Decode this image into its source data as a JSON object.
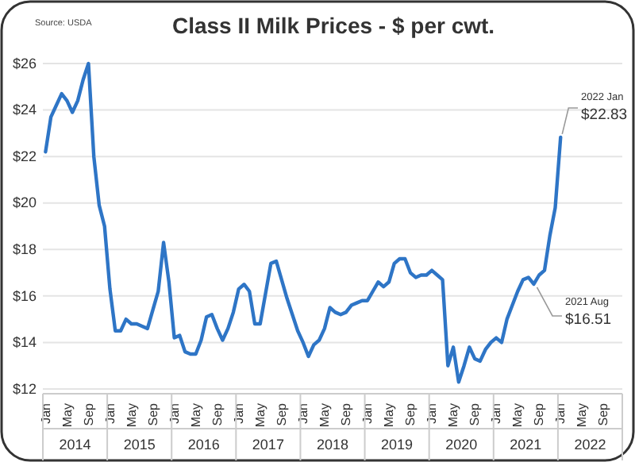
{
  "chart_data": {
    "type": "line",
    "title": "Class II Milk Prices - $ per cwt.",
    "categories": [
      "Jan",
      null,
      null,
      null,
      "May",
      null,
      null,
      null,
      "Sep",
      null,
      null,
      null,
      "Jan",
      null,
      null,
      null,
      "May",
      null,
      null,
      null,
      "Sep",
      null,
      null,
      null,
      "Jan",
      null,
      null,
      null,
      "May",
      null,
      null,
      null,
      "Sep",
      null,
      null,
      null,
      "Jan",
      null,
      null,
      null,
      "May",
      null,
      null,
      null,
      "Sep",
      null,
      null,
      null,
      "Jan",
      null,
      null,
      null,
      "May",
      null,
      null,
      null,
      "Sep",
      null,
      null,
      null,
      "Jan",
      null,
      null,
      null,
      "May",
      null,
      null,
      null,
      "Sep",
      null,
      null,
      null,
      "Jan",
      null,
      null,
      null,
      "May",
      null,
      null,
      null,
      "Sep",
      null,
      null,
      null,
      "Jan",
      null,
      null,
      null,
      "May",
      null,
      null,
      null,
      "Sep",
      null,
      null,
      null,
      "Jan",
      null,
      null,
      null,
      "May",
      null,
      null,
      null,
      "Sep",
      null,
      null,
      null
    ],
    "series": [
      {
        "color": "#2e75c6",
        "values": [
          22.2,
          23.7,
          24.2,
          24.7,
          24.4,
          23.9,
          24.4,
          25.3,
          26.0,
          22.0,
          19.9,
          19.0,
          16.3,
          14.5,
          14.5,
          15.0,
          14.8,
          14.8,
          14.7,
          14.6,
          15.4,
          16.2,
          18.3,
          16.6,
          14.2,
          14.3,
          13.6,
          13.5,
          13.5,
          14.1,
          15.1,
          15.2,
          14.6,
          14.1,
          14.6,
          15.3,
          16.3,
          16.5,
          16.2,
          14.8,
          14.8,
          16.1,
          17.4,
          17.5,
          16.7,
          15.9,
          15.2,
          14.5,
          14.0,
          13.4,
          13.9,
          14.1,
          14.6,
          15.5,
          15.3,
          15.2,
          15.3,
          15.6,
          15.7,
          15.8,
          15.8,
          16.2,
          16.6,
          16.4,
          16.6,
          17.4,
          17.6,
          17.6,
          17.0,
          16.8,
          16.9,
          16.9,
          17.1,
          16.9,
          16.7,
          13.0,
          13.8,
          12.3,
          13.0,
          13.8,
          13.3,
          13.2,
          13.7,
          14.0,
          14.2,
          14.0,
          15.0,
          15.6,
          16.2,
          16.7,
          16.8,
          16.51,
          16.9,
          17.1,
          18.6,
          19.8,
          22.83,
          null,
          null,
          null,
          null,
          null,
          null,
          null,
          null,
          null,
          null,
          null
        ]
      }
    ],
    "ylim": [
      12,
      26
    ],
    "yticks": [
      {
        "value": 12,
        "label": "$12"
      },
      {
        "value": 14,
        "label": "$14"
      },
      {
        "value": 16,
        "label": "$16"
      },
      {
        "value": 18,
        "label": "$18"
      },
      {
        "value": 20,
        "label": "$20"
      },
      {
        "value": 22,
        "label": "$22"
      },
      {
        "value": 24,
        "label": "$24"
      },
      {
        "value": 26,
        "label": "$26"
      }
    ],
    "grid": "y",
    "marker": "none",
    "line_style": "solid",
    "annotations": [
      "Source: USDA",
      "2014",
      "2015",
      "2016",
      "2017",
      "2018",
      "2019",
      "2020",
      "2021",
      "2022",
      "2022 Jan",
      "$22.83",
      "2021 Aug",
      "$16.51"
    ]
  }
}
